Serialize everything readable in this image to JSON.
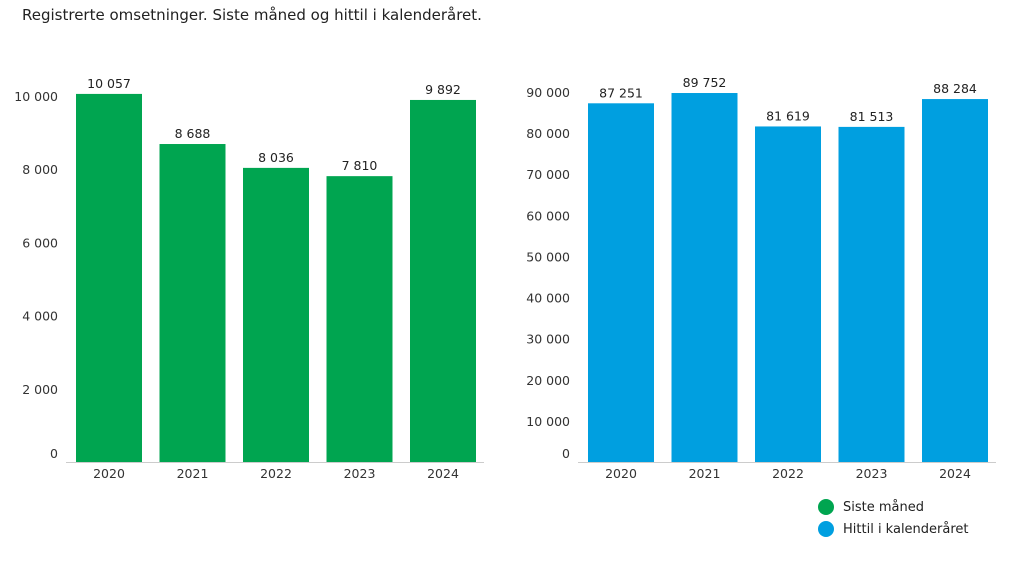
{
  "title": "Registrerte omsetninger. Siste måned og hittil i kalenderåret.",
  "chart_data": [
    {
      "type": "bar",
      "categories": [
        "2020",
        "2021",
        "2022",
        "2023",
        "2024"
      ],
      "series": [
        {
          "name": "Siste måned",
          "values": [
            10057,
            8688,
            8036,
            7810,
            9892
          ],
          "color": "#00a550"
        }
      ],
      "data_labels": [
        "10 057",
        "8 688",
        "8 036",
        "7 810",
        "9 892"
      ],
      "yticks": [
        0,
        2000,
        4000,
        6000,
        8000,
        10000
      ],
      "ytick_labels": [
        "0",
        "2 000",
        "4 000",
        "6 000",
        "8 000",
        "10 000"
      ],
      "ylim": [
        0,
        10000
      ],
      "grid": false
    },
    {
      "type": "bar",
      "categories": [
        "2020",
        "2021",
        "2022",
        "2023",
        "2024"
      ],
      "series": [
        {
          "name": "Hittil i kalenderåret",
          "values": [
            87251,
            89752,
            81619,
            81513,
            88284
          ],
          "color": "#009fe0"
        }
      ],
      "data_labels": [
        "87 251",
        "89 752",
        "81 619",
        "81 513",
        "88 284"
      ],
      "yticks": [
        0,
        10000,
        20000,
        30000,
        40000,
        50000,
        60000,
        70000,
        80000,
        90000
      ],
      "ytick_labels": [
        "0",
        "10 000",
        "20 000",
        "30 000",
        "40 000",
        "50 000",
        "60 000",
        "70 000",
        "80 000",
        "90 000"
      ],
      "ylim": [
        0,
        90000
      ],
      "grid": false
    }
  ],
  "legend": {
    "placement": "bottom-right",
    "items": [
      {
        "label": "Siste måned",
        "color": "#00a550"
      },
      {
        "label": "Hittil i kalenderåret",
        "color": "#009fe0"
      }
    ]
  }
}
